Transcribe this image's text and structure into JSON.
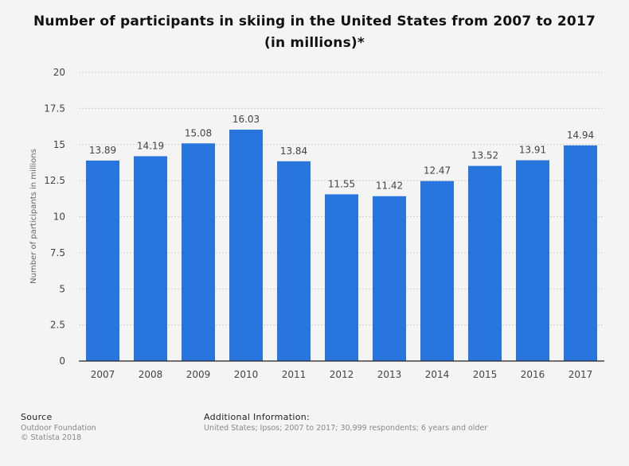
{
  "title": "Number of participants in skiing in the United States from 2007 to 2017 (in millions)*",
  "colors": {
    "bar": "#2876dd",
    "grid": "#d0d0d0",
    "axis": "#222222",
    "text": "#444444"
  },
  "chart_data": {
    "type": "bar",
    "categories": [
      "2007",
      "2008",
      "2009",
      "2010",
      "2011",
      "2012",
      "2013",
      "2014",
      "2015",
      "2016",
      "2017"
    ],
    "values": [
      13.89,
      14.19,
      15.08,
      16.03,
      13.84,
      11.55,
      11.42,
      12.47,
      13.52,
      13.91,
      14.94
    ],
    "value_labels": [
      "13.89",
      "14.19",
      "15.08",
      "16.03",
      "13.84",
      "11.55",
      "11.42",
      "12.47",
      "13.52",
      "13.91",
      "14.94"
    ],
    "ylabel": "Number of participants in millions",
    "ylim": [
      0,
      20
    ],
    "yticks": [
      "0",
      "2.5",
      "5",
      "7.5",
      "10",
      "12.5",
      "15",
      "17.5",
      "20"
    ],
    "grid": true
  },
  "footer": {
    "source_heading": "Source",
    "source_lines": [
      "Outdoor Foundation",
      "© Statista 2018"
    ],
    "info_heading": "Additional Information:",
    "info_text": "United States; Ipsos; 2007 to 2017; 30,999 respondents; 6 years and older"
  }
}
